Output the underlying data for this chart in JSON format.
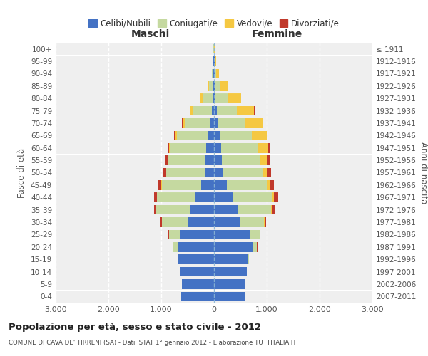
{
  "age_groups": [
    "0-4",
    "5-9",
    "10-14",
    "15-19",
    "20-24",
    "25-29",
    "30-34",
    "35-39",
    "40-44",
    "45-49",
    "50-54",
    "55-59",
    "60-64",
    "65-69",
    "70-74",
    "75-79",
    "80-84",
    "85-89",
    "90-94",
    "95-99",
    "100+"
  ],
  "birth_years": [
    "2007-2011",
    "2002-2006",
    "1997-2001",
    "1992-1996",
    "1987-1991",
    "1982-1986",
    "1977-1981",
    "1972-1976",
    "1967-1971",
    "1962-1966",
    "1957-1961",
    "1952-1956",
    "1947-1951",
    "1942-1946",
    "1937-1941",
    "1932-1936",
    "1927-1931",
    "1922-1926",
    "1917-1921",
    "1912-1916",
    "≤ 1911"
  ],
  "male": {
    "celibi": [
      620,
      610,
      650,
      670,
      690,
      630,
      500,
      460,
      360,
      250,
      180,
      165,
      145,
      110,
      70,
      40,
      30,
      25,
      12,
      7,
      5
    ],
    "coniugati": [
      1,
      1,
      2,
      8,
      80,
      220,
      490,
      640,
      720,
      740,
      720,
      700,
      680,
      590,
      480,
      360,
      190,
      75,
      22,
      8,
      2
    ],
    "vedovi": [
      0,
      0,
      0,
      0,
      0,
      1,
      3,
      4,
      5,
      8,
      12,
      18,
      25,
      35,
      45,
      55,
      35,
      18,
      4,
      1,
      0
    ],
    "divorziati": [
      0,
      0,
      0,
      0,
      2,
      8,
      22,
      35,
      45,
      55,
      45,
      35,
      28,
      18,
      10,
      6,
      4,
      2,
      1,
      0,
      0
    ]
  },
  "female": {
    "nubili": [
      600,
      590,
      620,
      650,
      740,
      680,
      490,
      460,
      360,
      240,
      180,
      155,
      140,
      115,
      80,
      50,
      30,
      25,
      15,
      8,
      4
    ],
    "coniugate": [
      1,
      1,
      2,
      8,
      75,
      190,
      460,
      620,
      740,
      760,
      740,
      720,
      690,
      600,
      500,
      380,
      230,
      90,
      28,
      10,
      2
    ],
    "vedove": [
      0,
      0,
      0,
      0,
      1,
      3,
      8,
      15,
      35,
      60,
      90,
      140,
      200,
      280,
      340,
      330,
      250,
      145,
      55,
      20,
      5
    ],
    "divorziate": [
      0,
      0,
      0,
      1,
      3,
      12,
      30,
      55,
      75,
      80,
      65,
      50,
      35,
      22,
      12,
      8,
      4,
      2,
      1,
      0,
      0
    ]
  },
  "colors": {
    "celibi_nubili": "#4472C4",
    "coniugati_e": "#C5D9A0",
    "vedovi_e": "#F5C842",
    "divorziati_e": "#C0392B"
  },
  "title": "Popolazione per età, sesso e stato civile - 2012",
  "subtitle": "COMUNE DI CAVA DE' TIRRENI (SA) - Dati ISTAT 1° gennaio 2012 - Elaborazione TUTTITALIA.IT",
  "xlabel_left": "Maschi",
  "xlabel_right": "Femmine",
  "ylabel_left": "Fasce di età",
  "ylabel_right": "Anni di nascita",
  "xlim": 3000,
  "legend_labels": [
    "Celibi/Nubili",
    "Coniugati/e",
    "Vedovi/e",
    "Divorziati/e"
  ],
  "bg_color": "#ffffff",
  "grid_color": "#cccccc"
}
